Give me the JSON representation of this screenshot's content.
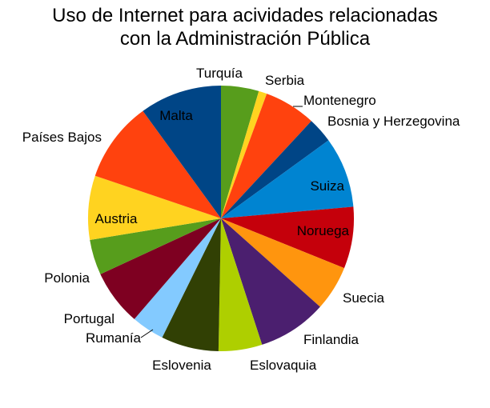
{
  "chart_data": {
    "type": "pie",
    "title": [
      "Uso de Internet para acividades relacionadas",
      "con la Administración Pública"
    ],
    "legend": "none",
    "slices": [
      {
        "label": "Turquía",
        "value": 4.6,
        "color": "#579d1c"
      },
      {
        "label": "Serbia",
        "value": 1.0,
        "color": "#ffd320"
      },
      {
        "label": "Montenegro",
        "value": 6.3,
        "color": "#ff420e"
      },
      {
        "label": "Bosnia y Herzegovina",
        "value": 3.1,
        "color": "#004586"
      },
      {
        "label": "Suiza",
        "value": 8.6,
        "color": "#0084d1"
      },
      {
        "label": "Noruega",
        "value": 7.5,
        "color": "#c5000b"
      },
      {
        "label": "Suecia",
        "value": 5.5,
        "color": "#ff950e"
      },
      {
        "label": "Finlandia",
        "value": 8.4,
        "color": "#4b1f6f"
      },
      {
        "label": "Eslovaquia",
        "value": 5.3,
        "color": "#aecf00"
      },
      {
        "label": "Eslovenia",
        "value": 7.0,
        "color": "#314004"
      },
      {
        "label": "Rumanía",
        "value": 4.0,
        "color": "#83caff"
      },
      {
        "label": "Portugal",
        "value": 6.8,
        "color": "#7e0021"
      },
      {
        "label": "Polonia",
        "value": 4.3,
        "color": "#579d1c"
      },
      {
        "label": "Austria",
        "value": 7.8,
        "color": "#ffd320"
      },
      {
        "label": "Países Bajos",
        "value": 9.8,
        "color": "#ff420e"
      },
      {
        "label": "Malta",
        "value": 10.0,
        "color": "#004586"
      }
    ]
  }
}
